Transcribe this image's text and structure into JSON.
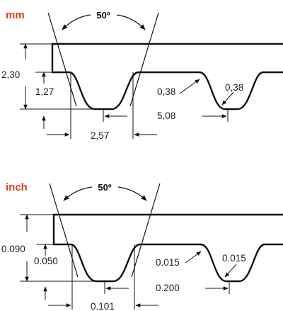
{
  "colors": {
    "unit_label": "#e0401a",
    "line": "#111111",
    "text": "#222222"
  },
  "diagrams": [
    {
      "unit_label": "mm",
      "angle": "50º",
      "total_height": "2,30",
      "tooth_height": "1,27",
      "root_radius": "0,38",
      "tip_radius": "0,38",
      "pitch": "5,08",
      "tooth_width": "2,57"
    },
    {
      "unit_label": "inch",
      "angle": "50º",
      "total_height": "0.090",
      "tooth_height": "0.050",
      "root_radius": "0.015",
      "tip_radius": "0.015",
      "pitch": "0.200",
      "tooth_width": "0.101"
    }
  ]
}
